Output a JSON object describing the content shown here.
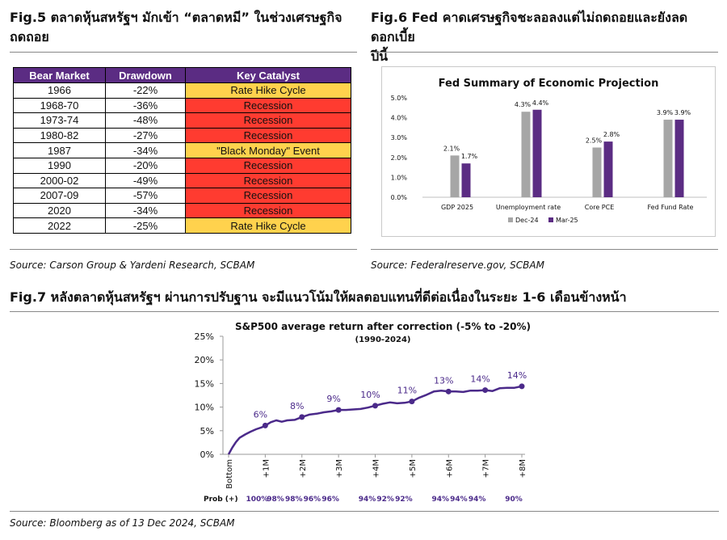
{
  "fig5": {
    "title_line1": "Fig.5 ตลาดหุ้นสหรัฐฯ มักเข้า “ตลาดหมี” ในช่วงเศรษฐกิจ",
    "title_line2": "ถดถอย",
    "source": "Source: Carson Group & Yardeni Research, SCBAM"
  },
  "fig6": {
    "title_line1": "Fig.6 Fed คาดเศรษฐกิจชะลอลงแต่ไม่ถดถอยและยังลดดอกเบี้ย",
    "title_line2": "ปีนี้",
    "source": "Source: Federalreserve.gov, SCBAM"
  },
  "fig7": {
    "title": "Fig.7 หลังตลาดหุ้นสหรัฐฯ ผ่านการปรับฐาน จะมีแนวโน้มให้ผลตอบแทนที่ดีต่อเนื่องในระยะ 1-6 เดือนข้างหน้า",
    "source": "Source: Bloomberg as of 13 Dec 2024, SCBAM"
  },
  "chart_data": [
    {
      "type": "table",
      "columns": [
        "Bear Market",
        "Drawdown",
        "Key Catalyst"
      ],
      "rows": [
        {
          "period": "1966",
          "drawdown": "-22%",
          "catalyst": "Rate Hike Cycle",
          "kind": "hike"
        },
        {
          "period": "1968-70",
          "drawdown": "-36%",
          "catalyst": "Recession",
          "kind": "recession"
        },
        {
          "period": "1973-74",
          "drawdown": "-48%",
          "catalyst": "Recession",
          "kind": "recession"
        },
        {
          "period": "1980-82",
          "drawdown": "-27%",
          "catalyst": "Recession",
          "kind": "recession"
        },
        {
          "period": "1987",
          "drawdown": "-34%",
          "catalyst": "\"Black Monday\" Event",
          "kind": "event"
        },
        {
          "period": "1990",
          "drawdown": "-20%",
          "catalyst": "Recession",
          "kind": "recession"
        },
        {
          "period": "2000-02",
          "drawdown": "-49%",
          "catalyst": "Recession",
          "kind": "recession"
        },
        {
          "period": "2007-09",
          "drawdown": "-57%",
          "catalyst": "Recession",
          "kind": "recession"
        },
        {
          "period": "2020",
          "drawdown": "-34%",
          "catalyst": "Recession",
          "kind": "recession"
        },
        {
          "period": "2022",
          "drawdown": "-25%",
          "catalyst": "Rate Hike Cycle",
          "kind": "hike"
        }
      ],
      "colors": {
        "header": "#5b2c83",
        "recession": "#ff3b30",
        "hike": "#ffd24d"
      }
    },
    {
      "type": "bar",
      "title": "Fed Summary of Economic Projection",
      "categories": [
        "GDP 2025",
        "Unemployment rate",
        "Core PCE",
        "Fed Fund Rate"
      ],
      "series": [
        {
          "name": "Dec-24",
          "values": [
            2.1,
            4.3,
            2.5,
            3.9
          ],
          "labels": [
            "2.1%",
            "4.3%",
            "2.5%",
            "3.9%"
          ],
          "color": "#a6a6a6"
        },
        {
          "name": "Mar-25",
          "values": [
            1.7,
            4.4,
            2.8,
            3.9
          ],
          "labels": [
            "1.7%",
            "4.4%",
            "2.8%",
            "3.9%"
          ],
          "color": "#5b2c83"
        }
      ],
      "ylim": [
        0,
        5
      ],
      "yticks": [
        "0.0%",
        "1.0%",
        "2.0%",
        "3.0%",
        "4.0%",
        "5.0%"
      ],
      "legend": "bottom"
    },
    {
      "type": "line",
      "title": "S&P500 average return after correction (-5% to -20%)",
      "subtitle": "(1990-2024)",
      "color": "#4b2a8a",
      "ylim": [
        0,
        25
      ],
      "yticks": [
        "0%",
        "5%",
        "10%",
        "15%",
        "20%",
        "25%"
      ],
      "x_ticks": [
        "Bottom",
        "+1M",
        "+2M",
        "+3M",
        "+4M",
        "+5M",
        "+6M",
        "+7M",
        "+8M"
      ],
      "x_tick_positions": [
        0,
        1,
        2,
        3,
        4,
        5,
        6,
        7,
        8
      ],
      "series": {
        "x": [
          0,
          0.1,
          0.2,
          0.3,
          0.45,
          0.6,
          0.75,
          0.9,
          1.0,
          1.15,
          1.3,
          1.45,
          1.6,
          1.8,
          2.0,
          2.2,
          2.4,
          2.6,
          2.8,
          3.0,
          3.2,
          3.4,
          3.6,
          3.8,
          4.0,
          4.2,
          4.4,
          4.6,
          4.8,
          5.0,
          5.2,
          5.4,
          5.6,
          5.8,
          6.0,
          6.2,
          6.4,
          6.6,
          6.8,
          7.0,
          7.2,
          7.4,
          7.6,
          7.8,
          8.0
        ],
        "y": [
          0,
          1.4,
          2.6,
          3.5,
          4.2,
          4.8,
          5.3,
          5.7,
          6.1,
          6.8,
          7.2,
          6.9,
          7.2,
          7.3,
          7.9,
          8.4,
          8.6,
          8.9,
          9.1,
          9.4,
          9.4,
          9.5,
          9.6,
          9.9,
          10.3,
          10.7,
          11.0,
          10.8,
          10.9,
          11.2,
          12.0,
          12.6,
          13.3,
          13.5,
          13.3,
          13.3,
          13.2,
          13.5,
          13.5,
          13.6,
          13.4,
          14.0,
          14.1,
          14.1,
          14.4
        ]
      },
      "markers": [
        {
          "x": 1,
          "y": 6.1,
          "label": "6%"
        },
        {
          "x": 2,
          "y": 7.9,
          "label": "8%"
        },
        {
          "x": 3,
          "y": 9.4,
          "label": "9%"
        },
        {
          "x": 4,
          "y": 10.3,
          "label": "10%"
        },
        {
          "x": 5,
          "y": 11.2,
          "label": "11%"
        },
        {
          "x": 6,
          "y": 13.3,
          "label": "13%"
        },
        {
          "x": 7,
          "y": 13.6,
          "label": "14%"
        },
        {
          "x": 8,
          "y": 14.4,
          "label": "14%"
        }
      ],
      "prob_label": "Prob (+)",
      "prob": [
        {
          "x": 1,
          "value": "100%"
        },
        {
          "x": 1.5,
          "value": "98%"
        },
        {
          "x": 2,
          "value": "98%"
        },
        {
          "x": 2.5,
          "value": "96%"
        },
        {
          "x": 3,
          "value": "96%"
        },
        {
          "x": 4,
          "value": "94%"
        },
        {
          "x": 4.5,
          "value": "92%"
        },
        {
          "x": 5,
          "value": "92%"
        },
        {
          "x": 6,
          "value": "94%"
        },
        {
          "x": 6.5,
          "value": "94%"
        },
        {
          "x": 7,
          "value": "94%"
        },
        {
          "x": 8,
          "value": "90%"
        }
      ]
    }
  ]
}
